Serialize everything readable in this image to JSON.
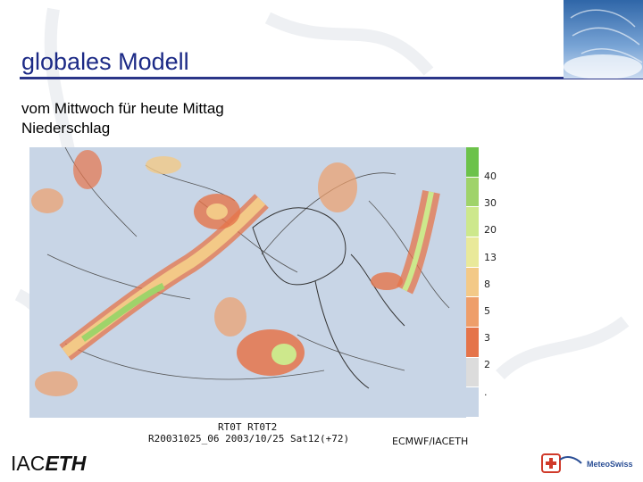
{
  "slide": {
    "title": "globales Modell",
    "subtitle_line1": "vom Mittwoch für heute Mittag",
    "subtitle_line2": "Niederschlag"
  },
  "chart": {
    "legend_ticks": [
      "40",
      "30",
      "20",
      "13",
      "8",
      "5",
      "3",
      "2",
      "."
    ],
    "legend_colors": [
      "#6cc24a",
      "#9fd36a",
      "#cde88c",
      "#e9e99a",
      "#f3c987",
      "#ee9e6a",
      "#e5744a",
      "#dcdcdc",
      "#c8d5e6"
    ],
    "caption_line1": "RT0T RT0T2",
    "caption_line2": "R20031025_06 2003/10/25 Sat12(+72)",
    "source": "ECMWF/IACETH"
  },
  "logos": {
    "left_prefix": "IAC",
    "left_bold": "ETH",
    "right_text": "MeteoSwiss"
  }
}
